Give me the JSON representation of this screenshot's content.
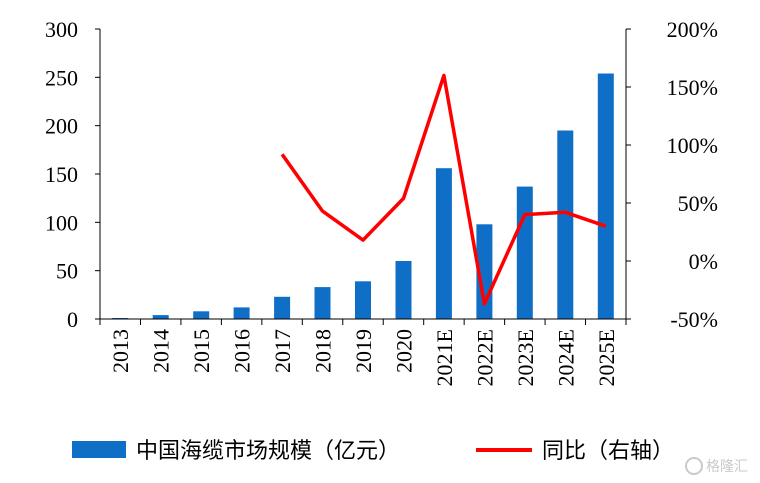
{
  "chart_data": {
    "type": "bar",
    "categories": [
      "2013",
      "2014",
      "2015",
      "2016",
      "2017",
      "2018",
      "2019",
      "2020",
      "2021E",
      "2022E",
      "2023E",
      "2024E",
      "2025E"
    ],
    "series": [
      {
        "name": "中国海缆市场规模（亿元）",
        "type": "bar",
        "axis": "left",
        "color": "#0f6fc6",
        "values": [
          1,
          4,
          8,
          12,
          23,
          33,
          39,
          60,
          156,
          98,
          137,
          195,
          254
        ]
      },
      {
        "name": "同比（右轴）",
        "type": "line",
        "axis": "right",
        "color": "#ff0000",
        "values": [
          null,
          null,
          null,
          null,
          92,
          43,
          18,
          54,
          160,
          -37,
          40,
          42,
          30
        ]
      }
    ],
    "y_left": {
      "min": 0,
      "max": 300,
      "ticks": [
        0,
        50,
        100,
        150,
        200,
        250,
        300
      ]
    },
    "y_right": {
      "min": -50,
      "max": 200,
      "ticks": [
        -50,
        0,
        50,
        100,
        150,
        200
      ],
      "tick_labels": [
        "-50%",
        "0%",
        "50%",
        "100%",
        "150%",
        "200%"
      ]
    },
    "legend_position": "bottom",
    "grid": false,
    "watermark": "格隆汇"
  }
}
